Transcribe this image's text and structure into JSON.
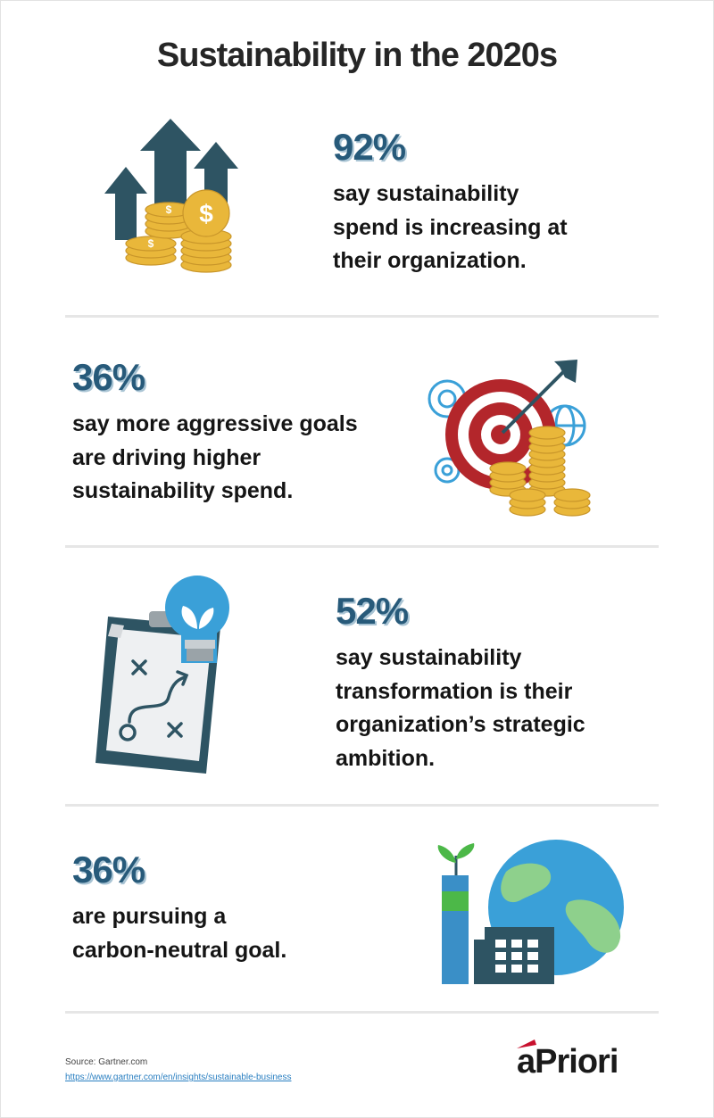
{
  "title": "Sustainability in the 2020s",
  "stats": [
    {
      "pct": "92%",
      "lines": [
        "say sustainability",
        "spend is increasing at",
        "their organization."
      ],
      "icon": "money-growth-icon"
    },
    {
      "pct": "36%",
      "lines": [
        "say more aggressive goals",
        "are driving higher",
        "sustainability spend."
      ],
      "icon": "target-coins-icon"
    },
    {
      "pct": "52%",
      "lines": [
        "say sustainability",
        "transformation is their",
        "organization’s strategic",
        "ambition."
      ],
      "icon": "strategy-clipboard-icon"
    },
    {
      "pct": "36%",
      "lines": [
        "are pursuing a",
        "carbon-neutral goal."
      ],
      "icon": "factory-globe-icon"
    }
  ],
  "source": {
    "label": "Source: Gartner.com",
    "url": "https://www.gartner.com/en/insights/sustainable-business"
  },
  "logo": {
    "text": "aPriori"
  },
  "colors": {
    "accent_blue": "#275a7a",
    "coin_gold": "#e9b73a",
    "target_red": "#b3262b",
    "globe_blue": "#3aa0d8",
    "leaf_green": "#4cb848"
  }
}
